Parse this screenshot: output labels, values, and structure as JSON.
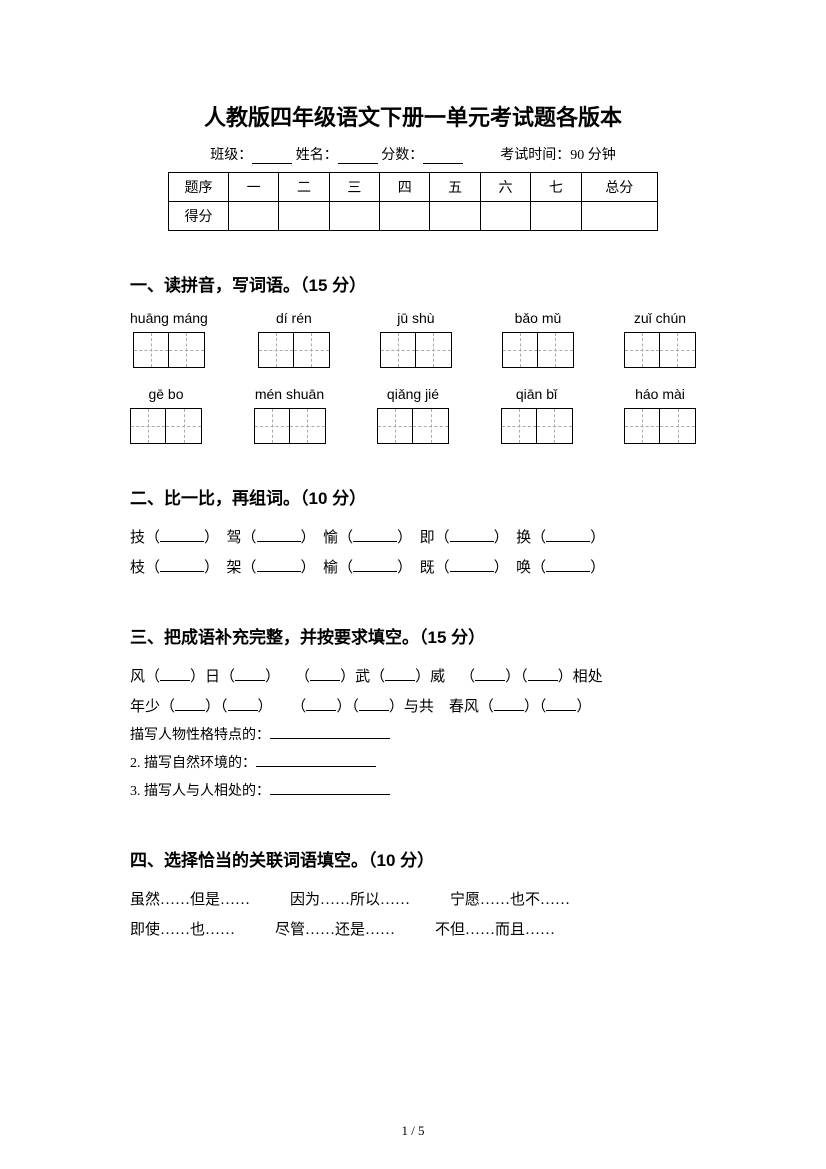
{
  "title": "人教版四年级语文下册一单元考试题各版本",
  "header": {
    "class_label": "班级：",
    "name_label": "姓名：",
    "score_label": "分数：",
    "time_label": "考试时间：90 分钟"
  },
  "scoreTable": {
    "row1": [
      "题序",
      "一",
      "二",
      "三",
      "四",
      "五",
      "六",
      "七",
      "总分"
    ],
    "row2_label": "得分"
  },
  "s1": {
    "heading": "一、读拼音，写词语。（15 分）",
    "row1": [
      "huāng máng",
      "dí rén",
      "jū shù",
      "bǎo mǔ",
      "zuǐ chún"
    ],
    "row2": [
      "gē bo",
      "mén shuān",
      "qiǎng jié",
      "qiān bǐ",
      "háo mài"
    ]
  },
  "s2": {
    "heading": "二、比一比，再组词。（10 分）",
    "pairs": [
      [
        "技",
        "驾",
        "愉",
        "即",
        "换"
      ],
      [
        "枝",
        "架",
        "榆",
        "既",
        "唤"
      ]
    ]
  },
  "s3": {
    "heading": "三、把成语补充完整，并按要求填空。（15 分）",
    "line1_parts": [
      "风（",
      "）日（",
      "）",
      "（",
      "）武（",
      "）威",
      "（",
      "）（",
      "）相处"
    ],
    "line2_parts": [
      "年少（",
      "）（",
      "）",
      "（",
      "）（",
      "）与共",
      "春风（",
      "）（",
      "）"
    ],
    "desc1": "描写人物性格特点的：",
    "desc2": "2. 描写自然环境的：",
    "desc3": "3. 描写人与人相处的："
  },
  "s4": {
    "heading": "四、选择恰当的关联词语填空。（10 分）",
    "row1": [
      "虽然……但是……",
      "因为……所以……",
      "宁愿……也不……"
    ],
    "row2": [
      "即使……也……",
      "尽管……还是……",
      "不但……而且……"
    ]
  },
  "pageNum": "1 / 5"
}
